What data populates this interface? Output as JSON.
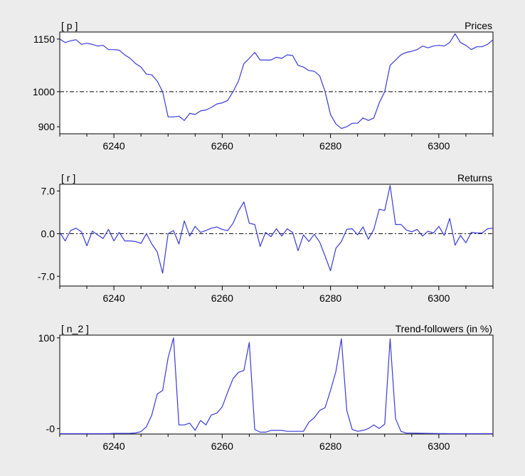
{
  "chart_data": [
    {
      "type": "line",
      "id": "prices",
      "corner_label": "[ p ]",
      "title": "Prices",
      "x_ticks": [
        6240,
        6260,
        6280,
        6300
      ],
      "y_ticks": [
        {
          "value": 1150,
          "label": "1150"
        },
        {
          "value": 1000,
          "label": "1000"
        },
        {
          "value": 900,
          "label": "900"
        }
      ],
      "xlim": [
        6230,
        6310
      ],
      "ylim": [
        880,
        1170
      ],
      "reference_line": 1000,
      "line_color": "#3a3ad8",
      "series": [
        {
          "x": [
            6230,
            6231,
            6232,
            6233,
            6234,
            6235,
            6236,
            6237,
            6238,
            6239,
            6240,
            6241,
            6242,
            6243,
            6244,
            6245,
            6246,
            6247,
            6248,
            6249,
            6250,
            6251,
            6252,
            6253,
            6254,
            6255,
            6256,
            6257,
            6258,
            6259,
            6260,
            6261,
            6262,
            6263,
            6264,
            6265,
            6266,
            6267,
            6268,
            6269,
            6270,
            6271,
            6272,
            6273,
            6274,
            6275,
            6276,
            6277,
            6278,
            6279,
            6280,
            6281,
            6282,
            6283,
            6284,
            6285,
            6286,
            6287,
            6288,
            6289,
            6290,
            6291,
            6292,
            6293,
            6294,
            6295,
            6296,
            6297,
            6298,
            6299,
            6300,
            6301,
            6302,
            6303,
            6304,
            6305,
            6306,
            6307,
            6308,
            6309,
            6310
          ],
          "values": [
            1150,
            1140,
            1145,
            1148,
            1135,
            1138,
            1135,
            1130,
            1132,
            1120,
            1120,
            1118,
            1105,
            1095,
            1080,
            1070,
            1050,
            1048,
            1030,
            1000,
            928,
            928,
            930,
            918,
            938,
            935,
            945,
            948,
            955,
            965,
            968,
            975,
            1000,
            1030,
            1080,
            1095,
            1112,
            1090,
            1090,
            1090,
            1098,
            1095,
            1105,
            1103,
            1075,
            1070,
            1060,
            1058,
            1045,
            1000,
            935,
            908,
            895,
            900,
            910,
            910,
            925,
            918,
            925,
            968,
            1000,
            1075,
            1090,
            1105,
            1112,
            1115,
            1120,
            1130,
            1125,
            1130,
            1132,
            1130,
            1140,
            1165,
            1140,
            1132,
            1120,
            1128,
            1128,
            1135,
            1148
          ]
        }
      ]
    },
    {
      "type": "line",
      "id": "returns",
      "corner_label": "[ r ]",
      "title": "Returns",
      "x_ticks": [
        6240,
        6260,
        6280,
        6300
      ],
      "y_ticks": [
        {
          "value": 7,
          "label": "7.0"
        },
        {
          "value": 0,
          "label": "0.0"
        },
        {
          "value": -7,
          "label": "-7.0"
        }
      ],
      "xlim": [
        6230,
        6310
      ],
      "ylim": [
        -8.6,
        8.1
      ],
      "reference_line": 0,
      "line_color": "#3a3ad8",
      "series": [
        {
          "x": [
            6230,
            6231,
            6232,
            6233,
            6234,
            6235,
            6236,
            6237,
            6238,
            6239,
            6240,
            6241,
            6242,
            6243,
            6244,
            6245,
            6246,
            6247,
            6248,
            6249,
            6250,
            6251,
            6252,
            6253,
            6254,
            6255,
            6256,
            6257,
            6258,
            6259,
            6260,
            6261,
            6262,
            6263,
            6264,
            6265,
            6266,
            6267,
            6268,
            6269,
            6270,
            6271,
            6272,
            6273,
            6274,
            6275,
            6276,
            6277,
            6278,
            6279,
            6280,
            6281,
            6282,
            6283,
            6284,
            6285,
            6286,
            6287,
            6288,
            6289,
            6290,
            6291,
            6292,
            6293,
            6294,
            6295,
            6296,
            6297,
            6298,
            6299,
            6300,
            6301,
            6302,
            6303,
            6304,
            6305,
            6306,
            6307,
            6308,
            6309,
            6310
          ],
          "values": [
            0.2,
            -1.2,
            0.5,
            0.9,
            0.3,
            -2.0,
            0.4,
            -0.2,
            -0.8,
            0.7,
            -1.2,
            0.2,
            -1.2,
            -1.2,
            -1.3,
            -1.6,
            0.0,
            -1.7,
            -3.0,
            -6.5,
            0.0,
            0.5,
            -1.7,
            2.1,
            -0.4,
            1.2,
            0.2,
            0.5,
            0.9,
            1.1,
            0.7,
            0.5,
            1.7,
            3.7,
            5.2,
            1.7,
            1.5,
            -2.1,
            0.2,
            -0.5,
            0.8,
            -0.4,
            0.8,
            0.2,
            -2.8,
            -0.2,
            -1.3,
            -0.1,
            -1.4,
            -3.7,
            -6.1,
            -2.4,
            -1.3,
            0.7,
            0.8,
            -0.2,
            1.1,
            -0.9,
            0.7,
            4.0,
            3.8,
            7.9,
            1.5,
            1.5,
            0.6,
            0.3,
            0.7,
            -0.4,
            0.4,
            0.1,
            1.2,
            -0.3,
            2.5,
            -1.9,
            -0.3,
            -1.5,
            0.2,
            0.1,
            0.1,
            0.8,
            0.9
          ]
        }
      ]
    },
    {
      "type": "line",
      "id": "trend-followers",
      "corner_label": "[ n_2 ]",
      "title": "Trend-followers (in %)",
      "x_ticks": [
        6240,
        6260,
        6280,
        6300
      ],
      "y_ticks": [
        {
          "value": 100,
          "label": "100"
        },
        {
          "value": 0,
          "label": "-0"
        }
      ],
      "xlim": [
        6230,
        6310
      ],
      "ylim": [
        -6,
        103
      ],
      "reference_line": null,
      "line_color": "#3a3ad8",
      "series": [
        {
          "x": [
            6230,
            6231,
            6232,
            6233,
            6234,
            6235,
            6236,
            6237,
            6238,
            6239,
            6240,
            6241,
            6242,
            6243,
            6244,
            6245,
            6246,
            6247,
            6248,
            6249,
            6250,
            6251,
            6252,
            6253,
            6254,
            6255,
            6256,
            6257,
            6258,
            6259,
            6260,
            6261,
            6262,
            6263,
            6264,
            6265,
            6266,
            6267,
            6268,
            6269,
            6270,
            6271,
            6272,
            6273,
            6274,
            6275,
            6276,
            6277,
            6278,
            6279,
            6280,
            6281,
            6282,
            6283,
            6284,
            6285,
            6286,
            6287,
            6288,
            6289,
            6290,
            6291,
            6292,
            6293,
            6294,
            6295,
            6296,
            6297,
            6298,
            6299,
            6300,
            6301,
            6302,
            6303,
            6304,
            6305,
            6306,
            6307,
            6308,
            6309,
            6310
          ],
          "values": [
            -5.6,
            -5.6,
            -5.6,
            -5.6,
            -5.6,
            -5.6,
            -5.6,
            -5.6,
            -5.6,
            -5.6,
            -5.3,
            -5.3,
            -5.3,
            -5.2,
            -4.8,
            -3.3,
            2.0,
            15.0,
            38.0,
            42.0,
            78.0,
            100.0,
            4.0,
            4.0,
            6.0,
            -2.0,
            9.0,
            4.0,
            15.0,
            17.0,
            24.0,
            40.0,
            55.0,
            62.0,
            64.0,
            95.0,
            -1.0,
            -4.0,
            -4.0,
            -2.0,
            -2.0,
            -2.0,
            -3.0,
            -3.0,
            -3.0,
            -3.0,
            7.0,
            12.0,
            20.0,
            23.0,
            42.0,
            63.0,
            99.0,
            20.0,
            -1.0,
            -3.0,
            -2.0,
            0.0,
            4.0,
            0.0,
            5.0,
            99.0,
            11.0,
            -3.0,
            -5.0,
            -5.0,
            -5.1,
            -5.2,
            -5.3,
            -5.4,
            -5.5,
            -5.5,
            -5.6,
            -5.6,
            -5.6,
            -5.6,
            -5.6,
            -5.6,
            -5.6,
            -5.6,
            -5.6
          ]
        }
      ]
    }
  ]
}
